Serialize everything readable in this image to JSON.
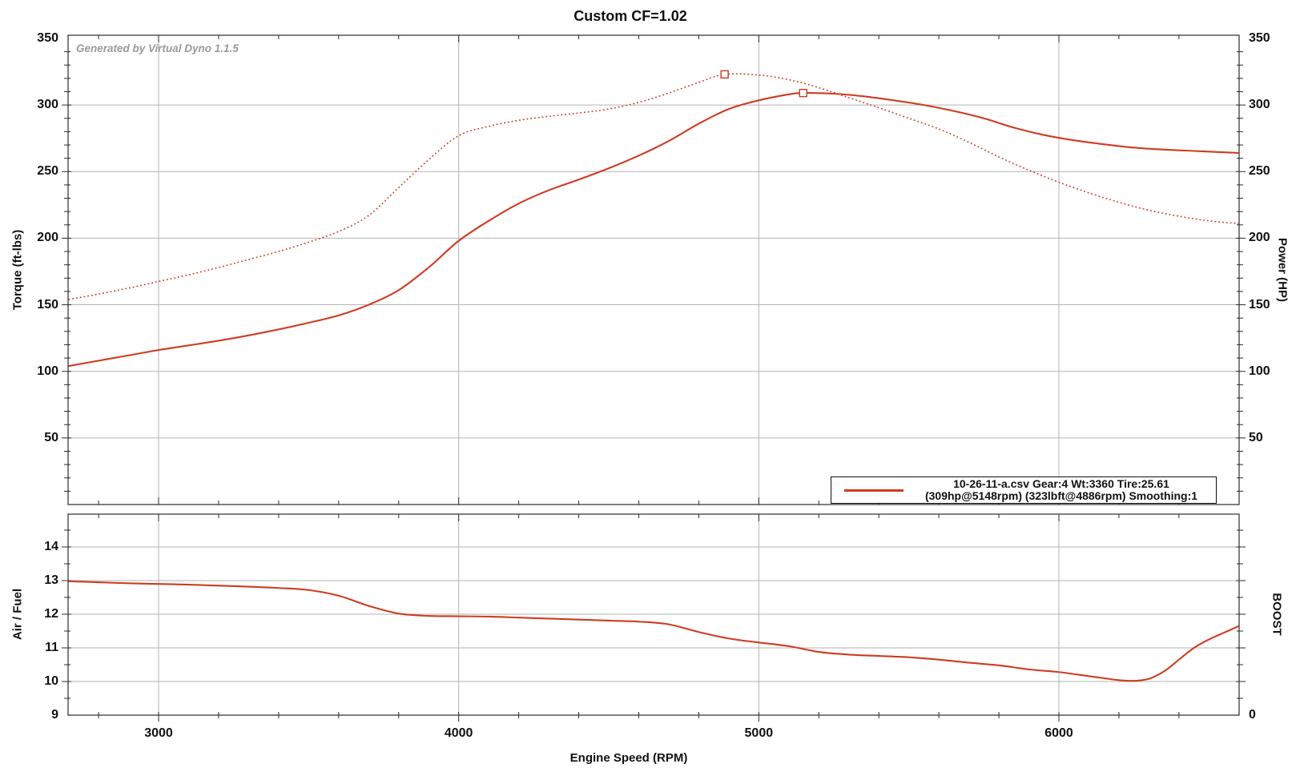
{
  "title": "Custom CF=1.02",
  "watermark": "Generated by Virtual Dyno 1.1.5",
  "legend": {
    "line1": "10-26-11-a.csv Gear:4 Wt:3360 Tire:25.61",
    "line2": "(309hp@5148rpm) (323lbft@4886rpm) Smoothing:1"
  },
  "colors": {
    "curve": "#cf3b22",
    "grid": "#b3b3b3",
    "axis": "#2b2b2b",
    "text": "#111111",
    "watermark": "#9b9b9b"
  },
  "chart_data": [
    {
      "type": "line",
      "title": "Custom CF=1.02",
      "xlabel": "Engine Speed (RPM)",
      "ylabel_left": "Torque (ft-lbs)",
      "ylabel_right": "Power (HP)",
      "x_range": [
        2700,
        6600
      ],
      "x_ticks": [
        3000,
        4000,
        5000,
        6000
      ],
      "x_minor_step": 200,
      "y_range": [
        0,
        350
      ],
      "y_ticks": [
        50,
        100,
        150,
        200,
        250,
        300,
        350
      ],
      "y_ticks_right": [
        50,
        100,
        150,
        200,
        250,
        300,
        350
      ],
      "y_minor_step": 10,
      "grid": true,
      "legend_position": "bottom-right",
      "series": [
        {
          "name": "Torque (ft-lbs)",
          "style": "dotted",
          "peak": {
            "rpm": 4886,
            "value": 323,
            "label": "323lbft@4886rpm"
          },
          "x": [
            2700,
            2800,
            2900,
            3000,
            3100,
            3200,
            3300,
            3400,
            3500,
            3600,
            3700,
            3800,
            3900,
            4000,
            4100,
            4200,
            4300,
            4400,
            4500,
            4600,
            4700,
            4800,
            4886,
            5000,
            5100,
            5200,
            5300,
            5400,
            5500,
            5600,
            5700,
            5800,
            5900,
            6000,
            6100,
            6200,
            6300,
            6400,
            6500,
            6600
          ],
          "values": [
            154,
            158,
            162.5,
            167.5,
            172.5,
            178,
            184,
            190,
            197,
            205,
            217,
            238,
            259,
            277,
            284,
            288.5,
            291.5,
            294,
            297,
            302,
            309,
            317,
            323,
            322.5,
            319,
            313,
            305.5,
            298,
            290,
            282,
            272,
            261,
            251,
            242,
            234,
            227,
            221,
            216.5,
            213,
            211
          ]
        },
        {
          "name": "Power (HP)",
          "style": "solid",
          "peak": {
            "rpm": 5148,
            "value": 309,
            "label": "309hp@5148rpm"
          },
          "x": [
            2700,
            2800,
            2900,
            3000,
            3100,
            3200,
            3300,
            3400,
            3500,
            3600,
            3700,
            3800,
            3900,
            4000,
            4100,
            4200,
            4300,
            4400,
            4500,
            4600,
            4700,
            4800,
            4900,
            5000,
            5100,
            5148,
            5250,
            5350,
            5450,
            5550,
            5650,
            5750,
            5850,
            5950,
            6050,
            6150,
            6250,
            6350,
            6450,
            6550,
            6600
          ],
          "values": [
            104,
            108,
            112,
            116,
            119.5,
            123,
            127,
            131.5,
            136.5,
            142,
            150,
            161,
            178,
            198,
            213,
            226,
            236,
            244,
            252.5,
            262,
            273,
            286,
            297,
            303.5,
            308,
            309,
            308.5,
            306.5,
            303.5,
            300,
            295.5,
            290,
            283,
            277.5,
            273.5,
            270.5,
            268,
            266.5,
            265.5,
            264.5,
            264
          ]
        }
      ]
    },
    {
      "type": "line",
      "xlabel": "Engine Speed (RPM)",
      "ylabel_left": "Air / Fuel",
      "ylabel_right": "BOOST",
      "right_axis_tick_label": "0",
      "x_range": [
        2700,
        6600
      ],
      "x_ticks": [
        3000,
        4000,
        5000,
        6000
      ],
      "x_minor_step": 200,
      "y_range": [
        9,
        15
      ],
      "y_ticks": [
        9,
        10,
        11,
        12,
        13,
        14
      ],
      "y_minor_step": 0.5,
      "grid": true,
      "series": [
        {
          "name": "Air / Fuel",
          "style": "solid",
          "x": [
            2700,
            2800,
            2900,
            3000,
            3100,
            3200,
            3300,
            3400,
            3500,
            3600,
            3700,
            3800,
            3900,
            4000,
            4100,
            4200,
            4300,
            4400,
            4500,
            4600,
            4700,
            4800,
            4900,
            5000,
            5100,
            5200,
            5300,
            5400,
            5500,
            5600,
            5700,
            5800,
            5900,
            6000,
            6100,
            6200,
            6250,
            6300,
            6350,
            6400,
            6450,
            6500,
            6550,
            6600
          ],
          "values": [
            12.98,
            12.95,
            12.92,
            12.9,
            12.88,
            12.85,
            12.82,
            12.78,
            12.72,
            12.55,
            12.25,
            12.02,
            11.95,
            11.94,
            11.93,
            11.9,
            11.87,
            11.84,
            11.81,
            11.78,
            11.7,
            11.47,
            11.28,
            11.16,
            11.05,
            10.88,
            10.8,
            10.76,
            10.72,
            10.65,
            10.56,
            10.48,
            10.36,
            10.28,
            10.16,
            10.04,
            10.02,
            10.08,
            10.3,
            10.65,
            11.0,
            11.25,
            11.45,
            11.65
          ]
        }
      ]
    }
  ]
}
